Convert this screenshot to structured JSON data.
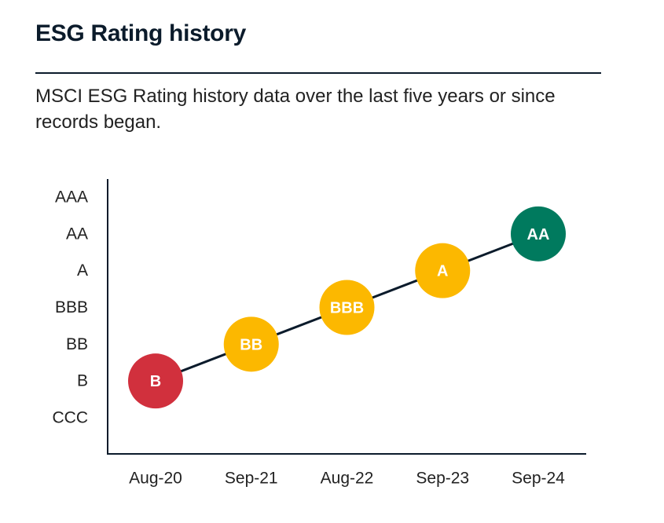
{
  "header": {
    "title": "ESG Rating history",
    "subtitle": "MSCI ESG Rating history data over the last five years or since records began."
  },
  "chart_data": {
    "type": "line",
    "title": "ESG Rating history",
    "xlabel": "",
    "ylabel": "",
    "categories": [
      "Aug-20",
      "Sep-21",
      "Aug-22",
      "Sep-23",
      "Sep-24"
    ],
    "y_levels": [
      "CCC",
      "B",
      "BB",
      "BBB",
      "A",
      "AA",
      "AAA"
    ],
    "series": [
      {
        "name": "MSCI ESG Rating",
        "values": [
          "B",
          "BB",
          "BBB",
          "A",
          "AA"
        ]
      }
    ],
    "grid": false,
    "colors": {
      "line": "#0b1b2b",
      "axis": "#0b1b2b",
      "B": "#d1303d",
      "BB": "#fcb800",
      "BBB": "#fcb800",
      "A": "#fcb800",
      "AA": "#007a5e"
    }
  }
}
